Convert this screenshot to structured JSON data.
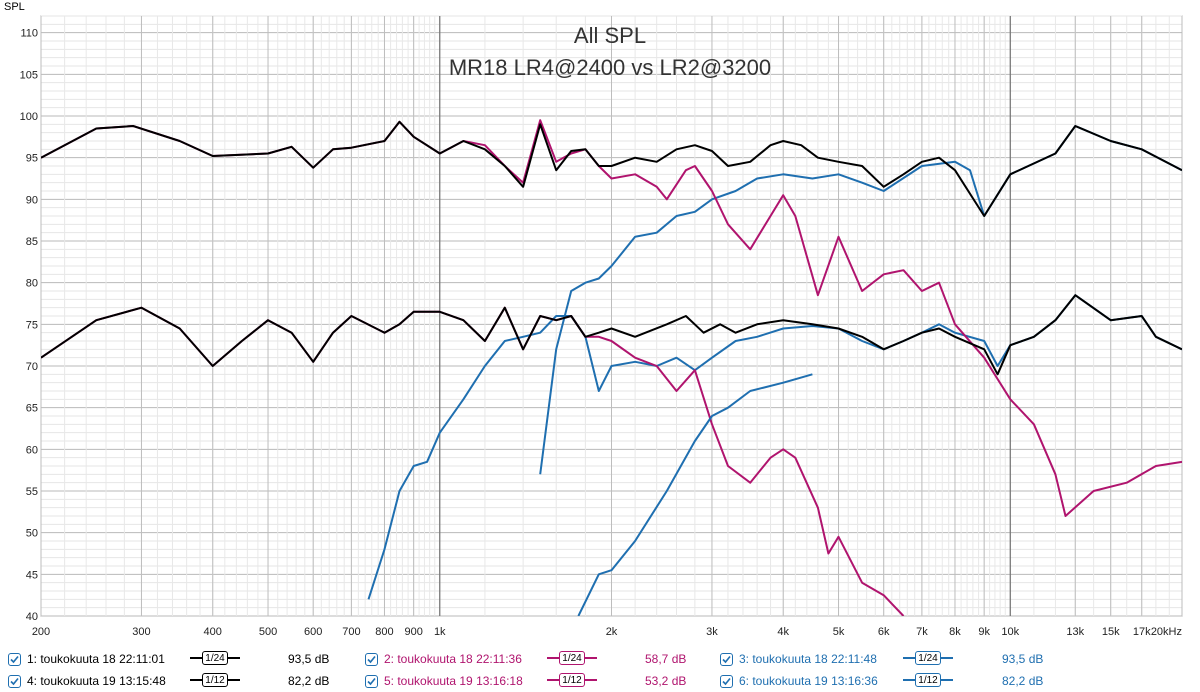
{
  "chart_data": {
    "type": "line",
    "title": "All SPL",
    "subtitle": "MR18 LR4@2400 vs LR2@3200",
    "ylabel": "SPL",
    "xlabel": "",
    "x_scale": "log",
    "xlim": [
      200,
      20000
    ],
    "ylim": [
      40,
      112
    ],
    "grid": true,
    "y_ticks": [
      40,
      45,
      50,
      55,
      60,
      65,
      70,
      75,
      80,
      85,
      90,
      95,
      100,
      105,
      110
    ],
    "x_ticks": [
      {
        "v": 200,
        "label": "200"
      },
      {
        "v": 300,
        "label": "300"
      },
      {
        "v": 400,
        "label": "400"
      },
      {
        "v": 500,
        "label": "500"
      },
      {
        "v": 600,
        "label": "600"
      },
      {
        "v": 700,
        "label": "700"
      },
      {
        "v": 800,
        "label": "800"
      },
      {
        "v": 900,
        "label": "900"
      },
      {
        "v": 1000,
        "label": "1k"
      },
      {
        "v": 2000,
        "label": "2k"
      },
      {
        "v": 3000,
        "label": "3k"
      },
      {
        "v": 4000,
        "label": "4k"
      },
      {
        "v": 5000,
        "label": "5k"
      },
      {
        "v": 6000,
        "label": "6k"
      },
      {
        "v": 7000,
        "label": "7k"
      },
      {
        "v": 8000,
        "label": "8k"
      },
      {
        "v": 9000,
        "label": "9k"
      },
      {
        "v": 10000,
        "label": "10k"
      },
      {
        "v": 13000,
        "label": "13k"
      },
      {
        "v": 15000,
        "label": "15k"
      },
      {
        "v": 17000,
        "label": "17k"
      },
      {
        "v": 20000,
        "label": "20kHz"
      }
    ],
    "series": [
      {
        "name": "1: toukokuuta 18 22:11:01",
        "color": "#000000",
        "points": [
          [
            200,
            95
          ],
          [
            250,
            98.5
          ],
          [
            290,
            98.8
          ],
          [
            350,
            97
          ],
          [
            400,
            95.2
          ],
          [
            500,
            95.5
          ],
          [
            550,
            96.3
          ],
          [
            600,
            93.8
          ],
          [
            650,
            96
          ],
          [
            700,
            96.2
          ],
          [
            800,
            97
          ],
          [
            850,
            99.3
          ],
          [
            900,
            97.5
          ],
          [
            1000,
            95.5
          ],
          [
            1100,
            97
          ],
          [
            1200,
            96
          ],
          [
            1300,
            94
          ],
          [
            1400,
            91.5
          ],
          [
            1500,
            99
          ],
          [
            1600,
            93.5
          ],
          [
            1700,
            95.8
          ],
          [
            1800,
            96
          ],
          [
            1900,
            94
          ],
          [
            2000,
            94
          ],
          [
            2200,
            95
          ],
          [
            2400,
            94.5
          ],
          [
            2600,
            96
          ],
          [
            2800,
            96.5
          ],
          [
            3000,
            95.8
          ],
          [
            3200,
            94
          ],
          [
            3500,
            94.5
          ],
          [
            3800,
            96.5
          ],
          [
            4000,
            97
          ],
          [
            4300,
            96.5
          ],
          [
            4600,
            95
          ],
          [
            5000,
            94.5
          ],
          [
            5500,
            94
          ],
          [
            6000,
            91.5
          ],
          [
            6500,
            93
          ],
          [
            7000,
            94.5
          ],
          [
            7500,
            95
          ],
          [
            8000,
            93.5
          ],
          [
            9000,
            88
          ],
          [
            10000,
            93
          ],
          [
            12000,
            95.5
          ],
          [
            13000,
            98.8
          ],
          [
            15000,
            97
          ],
          [
            17000,
            96
          ],
          [
            20000,
            93.5
          ]
        ]
      },
      {
        "name": "2: toukokuuta 18 22:11:36",
        "color": "#b0146e",
        "points": [
          [
            200,
            95
          ],
          [
            250,
            98.5
          ],
          [
            290,
            98.8
          ],
          [
            350,
            97
          ],
          [
            400,
            95.2
          ],
          [
            500,
            95.5
          ],
          [
            550,
            96.3
          ],
          [
            600,
            93.8
          ],
          [
            650,
            96
          ],
          [
            700,
            96.2
          ],
          [
            800,
            97
          ],
          [
            850,
            99.3
          ],
          [
            900,
            97.5
          ],
          [
            1000,
            95.5
          ],
          [
            1100,
            97
          ],
          [
            1200,
            96.5
          ],
          [
            1300,
            94
          ],
          [
            1400,
            92
          ],
          [
            1500,
            99.5
          ],
          [
            1600,
            94.5
          ],
          [
            1700,
            95.5
          ],
          [
            1800,
            96
          ],
          [
            1900,
            94
          ],
          [
            2000,
            92.5
          ],
          [
            2200,
            93
          ],
          [
            2400,
            91.5
          ],
          [
            2500,
            90
          ],
          [
            2700,
            93.5
          ],
          [
            2800,
            94
          ],
          [
            3000,
            91
          ],
          [
            3200,
            87
          ],
          [
            3500,
            84
          ],
          [
            3800,
            88
          ],
          [
            4000,
            90.5
          ],
          [
            4200,
            88
          ],
          [
            4600,
            78.5
          ],
          [
            5000,
            85.5
          ],
          [
            5500,
            79
          ],
          [
            6000,
            81
          ],
          [
            6500,
            81.5
          ],
          [
            7000,
            79
          ],
          [
            7500,
            80
          ],
          [
            8000,
            75
          ],
          [
            9000,
            71
          ],
          [
            10000,
            66
          ],
          [
            11000,
            63
          ],
          [
            12000,
            57
          ],
          [
            12500,
            52
          ],
          [
            14000,
            55
          ],
          [
            16000,
            56
          ],
          [
            18000,
            58
          ],
          [
            20000,
            58.5
          ]
        ]
      },
      {
        "name": "3: toukokuuta 18 22:11:48",
        "color": "#1f6fb0",
        "points": [
          [
            1500,
            57
          ],
          [
            1600,
            72
          ],
          [
            1700,
            79
          ],
          [
            1800,
            80
          ],
          [
            1900,
            80.5
          ],
          [
            2000,
            82
          ],
          [
            2200,
            85.5
          ],
          [
            2400,
            86
          ],
          [
            2600,
            88
          ],
          [
            2800,
            88.5
          ],
          [
            3000,
            90
          ],
          [
            3300,
            91
          ],
          [
            3600,
            92.5
          ],
          [
            4000,
            93
          ],
          [
            4500,
            92.5
          ],
          [
            5000,
            93
          ],
          [
            5500,
            92
          ],
          [
            6000,
            91
          ],
          [
            7000,
            94
          ],
          [
            8000,
            94.5
          ],
          [
            8500,
            93.5
          ],
          [
            9000,
            88
          ],
          [
            10000,
            93
          ],
          [
            12000,
            95.5
          ],
          [
            13000,
            98.8
          ],
          [
            15000,
            97
          ],
          [
            17000,
            96
          ],
          [
            20000,
            93.5
          ]
        ]
      },
      {
        "name": "4: toukokuuta 19 13:15:48",
        "color": "#000000",
        "points": [
          [
            200,
            71
          ],
          [
            250,
            75.5
          ],
          [
            300,
            77
          ],
          [
            350,
            74.5
          ],
          [
            400,
            70
          ],
          [
            450,
            73
          ],
          [
            500,
            75.5
          ],
          [
            550,
            74
          ],
          [
            600,
            70.5
          ],
          [
            650,
            74
          ],
          [
            700,
            76
          ],
          [
            800,
            74
          ],
          [
            850,
            75
          ],
          [
            900,
            76.5
          ],
          [
            1000,
            76.5
          ],
          [
            1100,
            75.5
          ],
          [
            1200,
            73
          ],
          [
            1300,
            77
          ],
          [
            1400,
            72
          ],
          [
            1500,
            76
          ],
          [
            1600,
            75.5
          ],
          [
            1700,
            76
          ],
          [
            1800,
            73.5
          ],
          [
            1900,
            74
          ],
          [
            2000,
            74.5
          ],
          [
            2200,
            73.5
          ],
          [
            2500,
            75
          ],
          [
            2700,
            76
          ],
          [
            2900,
            74
          ],
          [
            3100,
            75
          ],
          [
            3300,
            74
          ],
          [
            3600,
            75
          ],
          [
            4000,
            75.5
          ],
          [
            4500,
            75
          ],
          [
            5000,
            74.5
          ],
          [
            5500,
            73.5
          ],
          [
            6000,
            72
          ],
          [
            6500,
            73
          ],
          [
            7000,
            74
          ],
          [
            7500,
            74.5
          ],
          [
            8000,
            73.5
          ],
          [
            9000,
            72
          ],
          [
            9500,
            69
          ],
          [
            10000,
            72.5
          ],
          [
            11000,
            73.5
          ],
          [
            12000,
            75.5
          ],
          [
            13000,
            78.5
          ],
          [
            15000,
            75.5
          ],
          [
            17000,
            76
          ],
          [
            18000,
            73.5
          ],
          [
            20000,
            72
          ]
        ]
      },
      {
        "name": "5: toukokuuta 19 13:16:18",
        "color": "#b0146e",
        "points": [
          [
            200,
            71
          ],
          [
            250,
            75.5
          ],
          [
            300,
            77
          ],
          [
            350,
            74.5
          ],
          [
            400,
            70
          ],
          [
            450,
            73
          ],
          [
            500,
            75.5
          ],
          [
            550,
            74
          ],
          [
            600,
            70.5
          ],
          [
            650,
            74
          ],
          [
            700,
            76
          ],
          [
            800,
            74
          ],
          [
            850,
            75
          ],
          [
            900,
            76.5
          ],
          [
            1000,
            76.5
          ],
          [
            1100,
            75.5
          ],
          [
            1200,
            73
          ],
          [
            1300,
            77
          ],
          [
            1400,
            72
          ],
          [
            1500,
            76
          ],
          [
            1600,
            75.5
          ],
          [
            1700,
            76
          ],
          [
            1800,
            73.5
          ],
          [
            1900,
            73.5
          ],
          [
            2000,
            73
          ],
          [
            2200,
            71
          ],
          [
            2400,
            70
          ],
          [
            2600,
            67
          ],
          [
            2800,
            69.5
          ],
          [
            3000,
            63
          ],
          [
            3200,
            58
          ],
          [
            3500,
            56
          ],
          [
            3800,
            59
          ],
          [
            4000,
            60
          ],
          [
            4200,
            59
          ],
          [
            4600,
            53
          ],
          [
            4800,
            47.5
          ],
          [
            5000,
            49.5
          ],
          [
            5500,
            44
          ],
          [
            6000,
            42.5
          ],
          [
            6500,
            40
          ]
        ]
      },
      {
        "name": "6: toukokuuta 19 13:16:36",
        "color": "#1f6fb0",
        "points": [
          [
            750,
            42
          ],
          [
            800,
            48
          ],
          [
            850,
            55
          ],
          [
            900,
            58
          ],
          [
            950,
            58.5
          ],
          [
            1000,
            62
          ],
          [
            1100,
            66
          ],
          [
            1200,
            70
          ],
          [
            1300,
            73
          ],
          [
            1400,
            73.5
          ],
          [
            1500,
            74
          ],
          [
            1600,
            76
          ],
          [
            1700,
            76
          ],
          [
            1800,
            73.5
          ],
          [
            1900,
            67
          ],
          [
            2000,
            70
          ],
          [
            2200,
            70.5
          ],
          [
            2400,
            70
          ],
          [
            2600,
            71
          ],
          [
            2800,
            69.5
          ],
          [
            3000,
            71
          ],
          [
            3300,
            73
          ],
          [
            3600,
            73.5
          ],
          [
            4000,
            74.5
          ],
          [
            4500,
            74.8
          ],
          [
            5000,
            74.5
          ],
          [
            5500,
            73
          ],
          [
            6000,
            72
          ],
          [
            6500,
            73
          ],
          [
            7000,
            74
          ],
          [
            7500,
            75
          ],
          [
            8000,
            74
          ],
          [
            9000,
            73
          ],
          [
            9500,
            70
          ],
          [
            10000,
            72.5
          ],
          [
            11000,
            73.5
          ],
          [
            12000,
            75.5
          ],
          [
            13000,
            78.5
          ],
          [
            15000,
            75.5
          ],
          [
            17000,
            76
          ],
          [
            18000,
            73.5
          ],
          [
            20000,
            72
          ]
        ]
      },
      {
        "name": "6b",
        "color": "#1f6fb0",
        "legend": false,
        "points": [
          [
            1750,
            40
          ],
          [
            1900,
            45
          ],
          [
            2000,
            45.5
          ],
          [
            2200,
            49
          ],
          [
            2500,
            55
          ],
          [
            2800,
            61
          ],
          [
            3000,
            64
          ],
          [
            3200,
            65
          ],
          [
            3500,
            67
          ],
          [
            4000,
            68
          ],
          [
            4500,
            69
          ]
        ]
      }
    ]
  },
  "legend": {
    "rows": [
      [
        {
          "label": "1: toukokuuta 18 22:11:01",
          "smoothing": "1/24",
          "value": "93,5 dB",
          "color": "#000000"
        },
        {
          "label": "2: toukokuuta 18 22:11:36",
          "smoothing": "1/24",
          "value": "58,7 dB",
          "color": "#b0146e"
        },
        {
          "label": "3: toukokuuta 18 22:11:48",
          "smoothing": "1/24",
          "value": "93,5 dB",
          "color": "#1f6fb0"
        }
      ],
      [
        {
          "label": "4: toukokuuta 19 13:15:48",
          "smoothing": "1/12",
          "value": "82,2 dB",
          "color": "#000000"
        },
        {
          "label": "5: toukokuuta 19 13:16:18",
          "smoothing": "1/12",
          "value": "53,2 dB",
          "color": "#b0146e"
        },
        {
          "label": "6: toukokuuta 19 13:16:36",
          "smoothing": "1/12",
          "value": "82,2 dB",
          "color": "#1f6fb0"
        }
      ]
    ]
  }
}
